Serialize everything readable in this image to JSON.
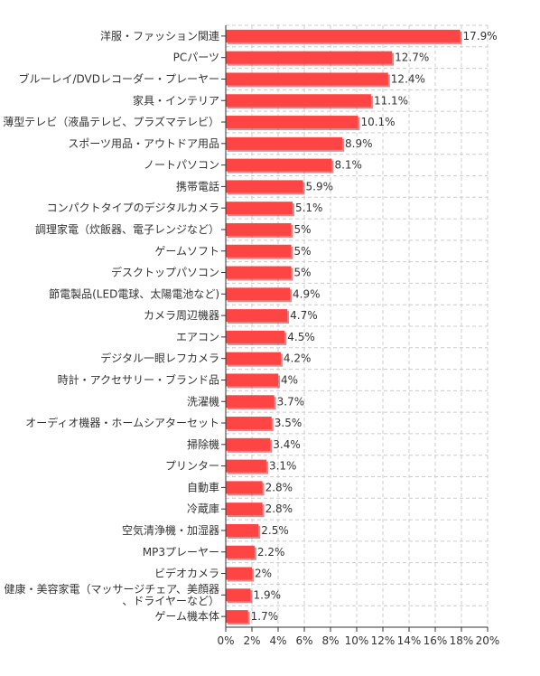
{
  "chart_data": {
    "type": "bar",
    "orientation": "horizontal",
    "categories": [
      "洋服・ファッション関連",
      "PCパーツ",
      "ブルーレイ/DVDレコーダー・プレーヤー",
      "家具・インテリア",
      "薄型テレビ（液晶テレビ、プラズマテレビ）",
      "スポーツ用品・アウトドア用品",
      "ノートパソコン",
      "携帯電話",
      "コンパクトタイプのデジタルカメラ",
      "調理家電（炊飯器、電子レンジなど）",
      "ゲームソフト",
      "デスクトップパソコン",
      "節電製品(LED電球、太陽電池など)",
      "カメラ周辺機器",
      "エアコン",
      "デジタル一眼レフカメラ",
      "時計・アクセサリー・ブランド品",
      "洗濯機",
      "オーディオ機器・ホームシアターセット",
      "掃除機",
      "プリンター",
      "自動車",
      "冷蔵庫",
      "空気清浄機・加湿器",
      "MP3プレーヤー",
      "ビデオカメラ",
      "健康・美容家電（マッサージチェア、美顔器、ドライヤーなど）",
      "ゲーム機本体"
    ],
    "values": [
      17.9,
      12.7,
      12.4,
      11.1,
      10.1,
      8.9,
      8.1,
      5.9,
      5.1,
      5,
      5,
      5,
      4.9,
      4.7,
      4.5,
      4.2,
      4,
      3.7,
      3.5,
      3.4,
      3.1,
      2.8,
      2.8,
      2.5,
      2.2,
      2,
      1.9,
      1.7
    ],
    "value_labels": [
      "17.9%",
      "12.7%",
      "12.4%",
      "11.1%",
      "10.1%",
      "8.9%",
      "8.1%",
      "5.9%",
      "5.1%",
      "5%",
      "5%",
      "5%",
      "4.9%",
      "4.7%",
      "4.5%",
      "4.2%",
      "4%",
      "3.7%",
      "3.5%",
      "3.4%",
      "3.1%",
      "2.8%",
      "2.8%",
      "2.5%",
      "2.2%",
      "2%",
      "1.9%",
      "1.7%"
    ],
    "x_ticks": [
      "0%",
      "2%",
      "4%",
      "6%",
      "8%",
      "10%",
      "12%",
      "14%",
      "16%",
      "18%",
      "20%"
    ],
    "xlim": [
      0,
      20
    ],
    "xlabel": "",
    "ylabel": "",
    "title": "",
    "grid": true,
    "legend": "none",
    "bar_color": "#ff4444",
    "bar_shadow_color": "#b02e2e",
    "grid_color": "#cccccc",
    "axis_color": "#333333"
  }
}
